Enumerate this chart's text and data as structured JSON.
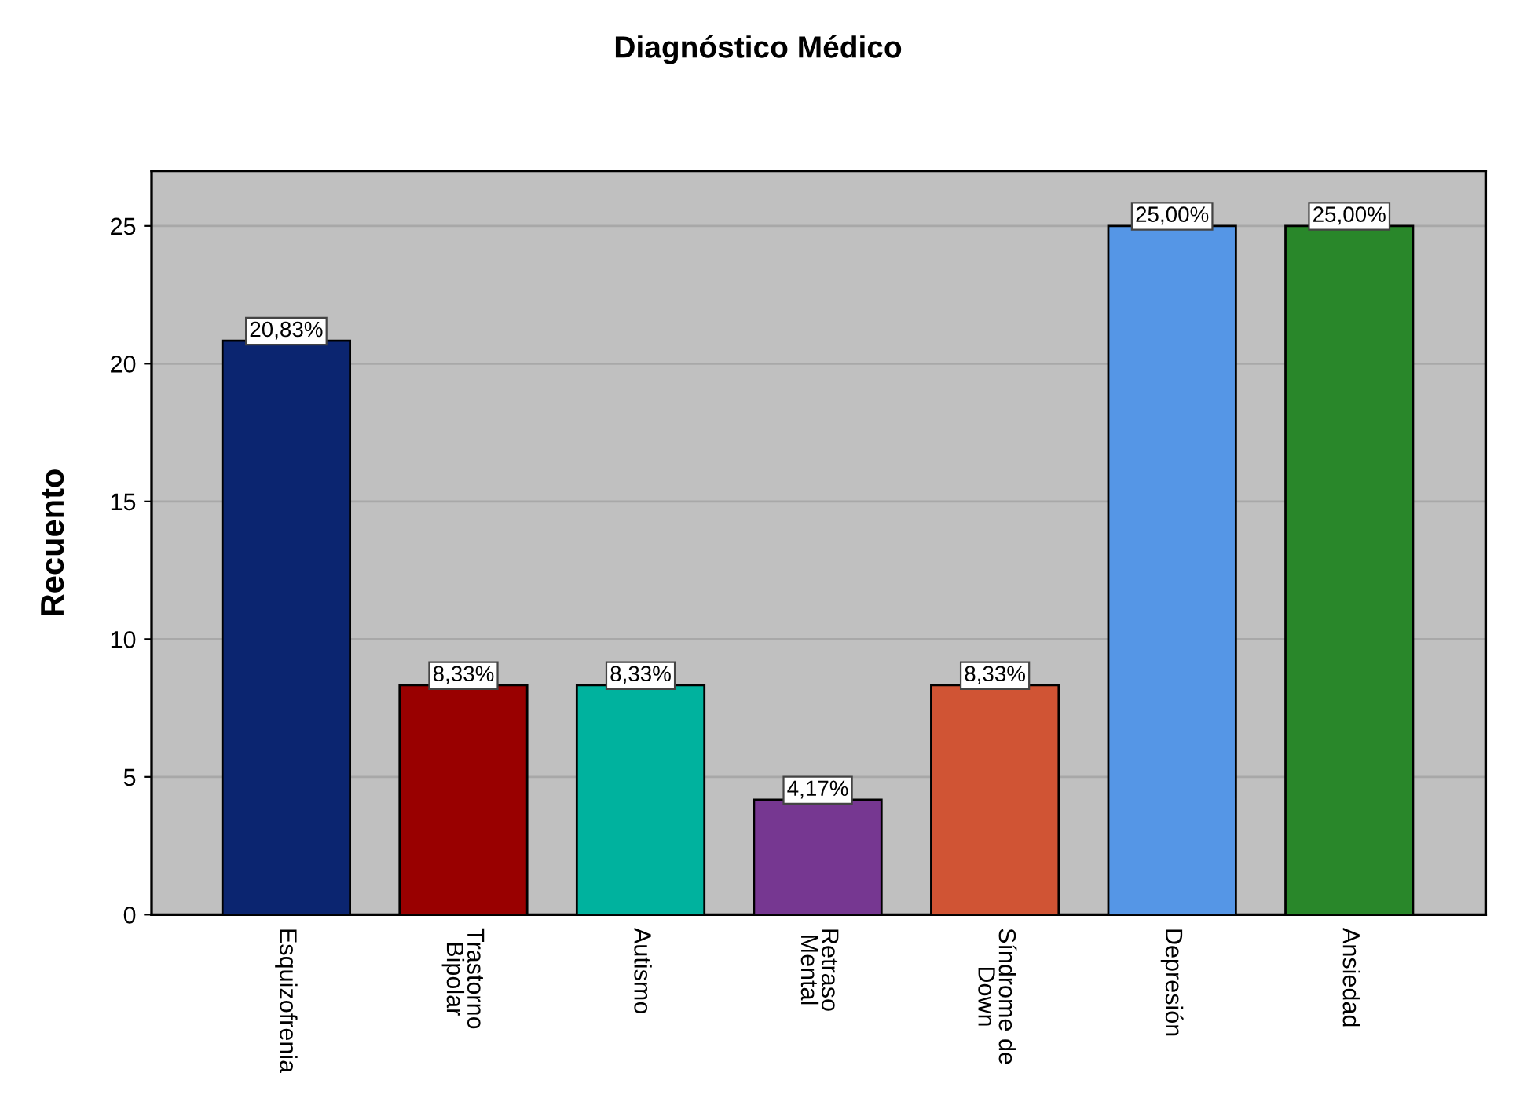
{
  "chart_data": {
    "type": "bar",
    "title": "Diagnóstico Médico",
    "ylabel": "Recuento",
    "categories": [
      "Esquizofrenia",
      "Trastorno\nBipolar",
      "Autismo",
      "Retraso\nMental",
      "Síndrome de\nDown",
      "Depresión",
      "Ansiedad"
    ],
    "values": [
      20.83,
      8.33,
      8.33,
      4.17,
      8.33,
      25,
      25
    ],
    "colors": [
      "#0b2570",
      "#990000",
      "#00b29e",
      "#763791",
      "#d05434",
      "#5596e6",
      "#29872a"
    ],
    "value_labels": [
      "20,83%",
      "8,33%",
      "8,33%",
      "4,17%",
      "8,33%",
      "25,00%",
      "25,00%"
    ],
    "ylim": [
      0,
      27
    ],
    "yticks": [
      0,
      5,
      10,
      15,
      20,
      25
    ],
    "grid": "y",
    "legend": false
  }
}
